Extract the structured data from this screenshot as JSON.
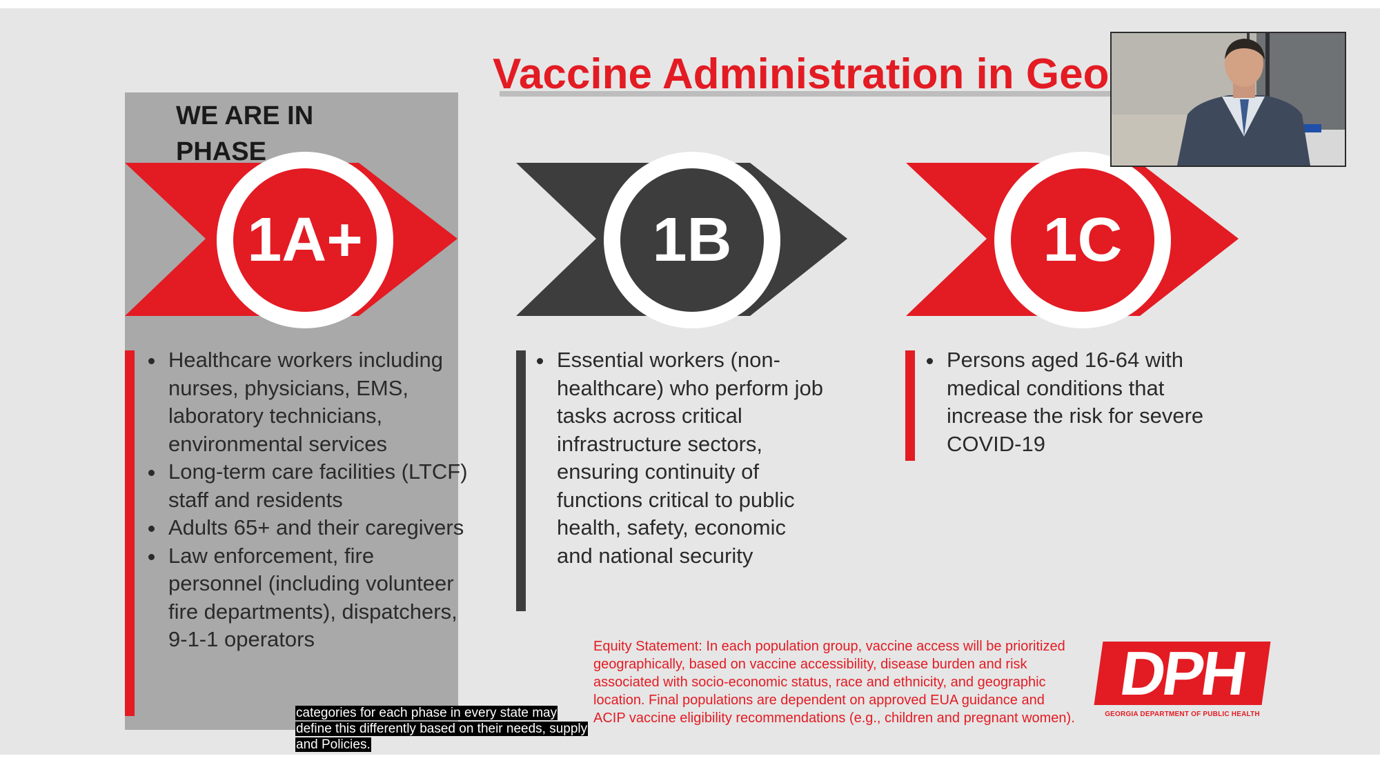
{
  "slide": {
    "title": "Vaccine Administration in Georgia",
    "phase_label": "WE ARE IN PHASE",
    "phases": [
      {
        "badge": "1A+",
        "bullets": [
          "Healthcare workers including nurses, physicians, EMS, laboratory technicians, environmental services",
          "Long-term care facilities (LTCF) staff and residents",
          "Adults 65+ and their caregivers",
          "Law enforcement, fire personnel (including volunteer fire departments), dispatchers, 9-1-1 operators"
        ]
      },
      {
        "badge": "1B",
        "bullets": [
          "Essential workers (non-healthcare) who perform job tasks across critical infrastructure sectors, ensuring continuity of functions critical to public health, safety, economic and national security"
        ]
      },
      {
        "badge": "1C",
        "bullets": [
          "Persons aged 16-64 with medical conditions that increase the risk for severe COVID-19"
        ]
      }
    ],
    "equity_statement": "Equity Statement: In each population group, vaccine access will be prioritized geographically, based on vaccine accessibility, disease burden and risk associated with socio-economic status, race and ethnicity, and geographic location. Final populations are dependent on approved EUA guidance and ACIP vaccine eligibility recommendations (e.g., children and pregnant women).",
    "logo": {
      "letters": "DPH",
      "subtitle": "GEORGIA DEPARTMENT OF PUBLIC HEALTH"
    }
  },
  "caption": {
    "lines": [
      "categories for each phase in every state may",
      "define this differently based on their needs, supply",
      "and Policies."
    ]
  },
  "colors": {
    "red": "#e31b23",
    "dark_gray": "#3d3d3d",
    "panel_gray": "#a9a9a9",
    "slide_bg": "#e6e6e6"
  }
}
